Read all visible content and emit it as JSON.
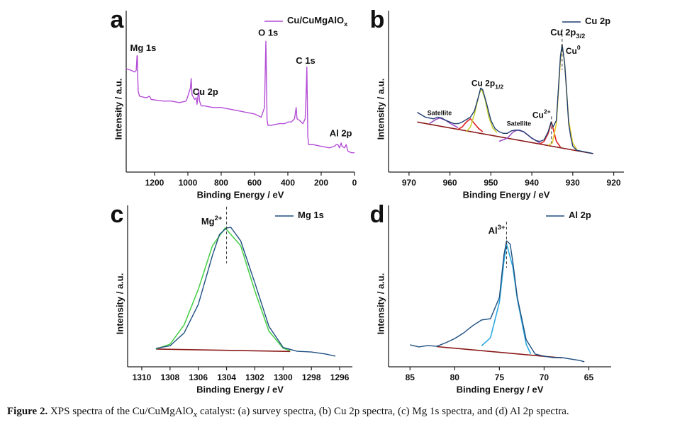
{
  "chart_data": [
    {
      "type": "line",
      "label": "a",
      "x_label": "Binding Energy / eV",
      "y_label": "Intensity / a.u.",
      "xlim": [
        1370,
        0
      ],
      "ylim": [
        0,
        100
      ],
      "xticks": [
        1200,
        1000,
        800,
        600,
        400,
        200,
        0
      ],
      "series": [
        {
          "name": "Cu/CuMgAlO",
          "name_sub": "x",
          "color": "#b44fd6",
          "x": [
            1370,
            1340,
            1320,
            1310,
            1305,
            1303,
            1301,
            1298,
            1290,
            1250,
            1230,
            1220,
            1150,
            1100,
            1050,
            1010,
            1000,
            985,
            980,
            975,
            960,
            950,
            945,
            935,
            930,
            920,
            900,
            850,
            800,
            750,
            700,
            650,
            600,
            560,
            540,
            532,
            530,
            525,
            520,
            500,
            450,
            420,
            400,
            380,
            360,
            350,
            345,
            330,
            310,
            296,
            290,
            286,
            284,
            280,
            275,
            250,
            200,
            150,
            120,
            110,
            100,
            90,
            80,
            75,
            60,
            50,
            40,
            20,
            0
          ],
          "values": [
            64,
            63,
            62,
            63,
            72,
            72,
            60,
            50,
            47,
            46,
            47,
            45,
            44,
            44,
            43,
            44,
            47,
            52,
            58,
            48,
            45,
            46,
            42,
            51,
            44,
            41,
            41,
            40,
            40,
            39,
            38,
            37,
            36,
            34,
            40,
            81,
            70,
            33,
            29,
            29,
            30,
            30,
            31,
            31,
            33,
            40,
            33,
            32,
            30,
            33,
            50,
            65,
            50,
            22,
            17,
            17,
            16,
            15,
            16,
            17,
            17,
            15,
            18,
            16,
            15,
            17,
            13,
            12,
            12
          ]
        }
      ],
      "annotations": [
        {
          "text": "Mg 1s",
          "x": 1304,
          "y": 72
        },
        {
          "text": "Cu 2p",
          "x": 933,
          "y": 58
        },
        {
          "text": "O 1s",
          "x": 531,
          "y": 81
        },
        {
          "text": "C 1s",
          "x": 285,
          "y": 65
        },
        {
          "text": "Al 2p",
          "x": 74,
          "y": 19
        }
      ]
    },
    {
      "type": "line",
      "label": "b",
      "x_label": "Binding Energy / eV",
      "y_label": "Intensity / a.u.",
      "xlim": [
        975,
        917.5
      ],
      "ylim": [
        0,
        100
      ],
      "xticks": [
        970,
        960,
        950,
        940,
        930,
        920
      ],
      "series": [
        {
          "name": "Cu 2p",
          "color": "#1f3f70",
          "x": [
            968,
            966,
            964,
            963,
            962,
            961,
            960,
            959,
            958,
            957,
            956,
            955,
            954,
            953,
            952.5,
            952,
            951,
            950,
            949,
            948,
            947,
            946,
            945,
            944,
            943,
            942,
            941,
            940,
            939,
            938,
            937,
            936,
            935.3,
            934.8,
            934,
            933.5,
            933,
            932.6,
            932,
            931.5,
            931,
            930.5,
            930,
            929,
            928,
            927,
            926,
            925
          ],
          "values": [
            37,
            34,
            33,
            34,
            33.5,
            32,
            31,
            30,
            30,
            31,
            32.5,
            34,
            38,
            47,
            52,
            51,
            42,
            32,
            27,
            25,
            24,
            24,
            25.5,
            26,
            26,
            25,
            23,
            21,
            19.5,
            19,
            20,
            25,
            31,
            28,
            32,
            52,
            72,
            79,
            68,
            50,
            30,
            22,
            16,
            13.5,
            13,
            12.5,
            12,
            11.5
          ]
        },
        {
          "color": "#e8d030",
          "x": [
            936,
            935,
            934,
            933.5,
            933,
            932.6,
            932,
            931.5,
            931,
            930,
            929
          ],
          "values": [
            16.6,
            18,
            30,
            50,
            70,
            79,
            68,
            50,
            32,
            18,
            14
          ]
        },
        {
          "color": "#e02020",
          "x": [
            938,
            937,
            936,
            935.2,
            934.5,
            934,
            933
          ],
          "values": [
            17.5,
            19,
            24,
            31,
            24,
            19,
            15.5
          ]
        },
        {
          "color": "#9b4fc8",
          "x": [
            948,
            946,
            944.5,
            943.5,
            942,
            940,
            938
          ],
          "values": [
            19,
            21,
            25,
            26,
            25,
            21,
            18
          ]
        },
        {
          "color": "#c8d030",
          "x": [
            956,
            955,
            954,
            953,
            952.4,
            951.5,
            950.5,
            949.5,
            948.5
          ],
          "values": [
            25,
            28,
            36,
            47,
            52,
            46,
            34,
            27,
            24.5
          ]
        },
        {
          "color": "#e02020",
          "x": [
            958,
            957,
            956,
            955,
            954,
            953,
            952
          ],
          "values": [
            26.5,
            28,
            31,
            33,
            30,
            27,
            25
          ]
        },
        {
          "color": "#9b4fc8",
          "x": [
            965,
            963.5,
            962.5,
            961,
            959.5,
            958
          ],
          "values": [
            30,
            32.5,
            33.5,
            32,
            29.5,
            27.5
          ]
        },
        {
          "color": "#8b1a1a",
          "x": [
            968,
            925
          ],
          "values": [
            31,
            11.4
          ]
        }
      ],
      "annotations": [
        {
          "text": "Cu 2p",
          "sub": "3/2",
          "x": 932.6,
          "y": 79
        },
        {
          "text": "Cu",
          "sup": "0",
          "x": 932.6,
          "y": 79
        },
        {
          "text": "Cu",
          "sup": "2+",
          "x": 935.2,
          "y": 31
        },
        {
          "text": "Satellite",
          "x": 943.5,
          "y": 26
        },
        {
          "text": "Satellite",
          "x": 962,
          "y": 33.5
        },
        {
          "text": "Cu 2p",
          "sub": "1/2",
          "x": 952.4,
          "y": 52
        }
      ]
    },
    {
      "type": "line",
      "label": "c",
      "x_label": "Binding Energy / eV",
      "y_label": "Intensity / a.u.",
      "xlim": [
        1311,
        1295.1
      ],
      "ylim": [
        0,
        100
      ],
      "xticks": [
        1310,
        1308,
        1306,
        1304,
        1302,
        1300,
        1298,
        1296
      ],
      "series": [
        {
          "name": "Mg 1s",
          "color": "#1f4f80",
          "x": [
            1309,
            1308,
            1307,
            1306,
            1305,
            1304.5,
            1304,
            1303.7,
            1303,
            1302,
            1301,
            1300,
            1299,
            1298,
            1297,
            1296.3
          ],
          "values": [
            11.4,
            13,
            21,
            38.6,
            69,
            82,
            86,
            86.4,
            78,
            52,
            25,
            12,
            9.6,
            9.2,
            7.9,
            6.6
          ]
        },
        {
          "color": "#4dd04d",
          "x": [
            1309,
            1308,
            1307,
            1306,
            1305,
            1304.1,
            1303,
            1302,
            1301,
            1300,
            1299.5
          ],
          "values": [
            11,
            14,
            26,
            48,
            75,
            86,
            75,
            47,
            22,
            11.5,
            10
          ]
        },
        {
          "color": "#8b1a1a",
          "x": [
            1309,
            1299.5
          ],
          "values": [
            11,
            9.5
          ]
        }
      ],
      "annotations": [
        {
          "text": "Mg",
          "sup": "2+",
          "x": 1304,
          "y": 86
        }
      ]
    },
    {
      "type": "line",
      "label": "d",
      "x_label": "Binding Energy / eV",
      "y_label": "Intensity / a.u.",
      "xlim": [
        87.4,
        62.5
      ],
      "ylim": [
        0,
        100
      ],
      "xticks": [
        85,
        80,
        75,
        70,
        65
      ],
      "series": [
        {
          "name": "Al 2p",
          "color": "#1f4f80",
          "x": [
            85,
            84,
            83,
            82,
            81,
            80,
            79,
            78,
            77,
            76,
            75,
            74.5,
            74.2,
            73.8,
            73.5,
            73,
            72,
            71,
            70,
            69,
            68,
            67,
            66,
            65.5
          ],
          "values": [
            13.6,
            12.3,
            13.2,
            12.7,
            14.9,
            17.5,
            21,
            25.4,
            29,
            29.8,
            43,
            69,
            78,
            76,
            65,
            43,
            16.7,
            7.9,
            6.6,
            5.7,
            5.7,
            4.8,
            3.9,
            3.1
          ]
        },
        {
          "color": "#2aa9e0",
          "x": [
            77,
            76,
            75,
            74.5,
            74.2,
            73.5,
            73,
            72,
            71.5
          ],
          "values": [
            13,
            18,
            40,
            65,
            76,
            62,
            42,
            14,
            8
          ]
        },
        {
          "color": "#8b1a1a",
          "x": [
            82,
            68
          ],
          "values": [
            12.5,
            5.5
          ]
        }
      ],
      "annotations": [
        {
          "text": "Al",
          "sup": "3+",
          "x": 74.2,
          "y": 78
        }
      ]
    }
  ],
  "caption": {
    "label": "Figure 2.",
    "text": " XPS spectra of the Cu/CuMgAlO",
    "sub": "x",
    "text_after": " catalyst: (a) survey spectra, (b) Cu 2p spectra, (c) Mg 1s spectra, and (d) Al 2p spectra."
  }
}
